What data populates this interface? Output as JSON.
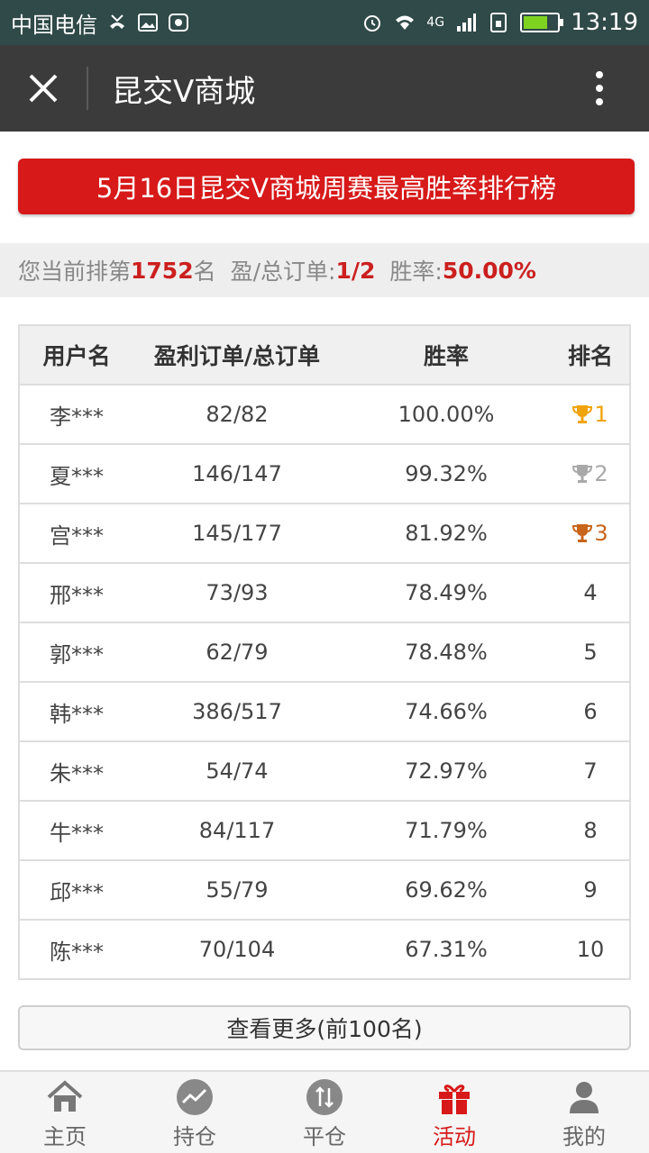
{
  "status_bar": {
    "carrier": "中国电信",
    "network": "4G",
    "time": "13:19",
    "battery_level": 0.7
  },
  "header": {
    "title": "昆交V商城"
  },
  "banner": {
    "text": "5月16日昆交V商城周赛最高胜率排行榜"
  },
  "current_rank": {
    "prefix": "您当前排第",
    "rank": "1752",
    "rank_suffix": "名",
    "orders_label": "盈/总订单:",
    "orders_value": "1/2",
    "rate_label": "胜率:",
    "rate_value": "50.00%"
  },
  "table": {
    "headers": [
      "用户名",
      "盈利订单/总订单",
      "胜率",
      "排名"
    ],
    "rows": [
      {
        "user": "李***",
        "orders": "82/82",
        "rate": "100.00%",
        "rank": "1",
        "trophy": "gold"
      },
      {
        "user": "夏***",
        "orders": "146/147",
        "rate": "99.32%",
        "rank": "2",
        "trophy": "silver"
      },
      {
        "user": "宫***",
        "orders": "145/177",
        "rate": "81.92%",
        "rank": "3",
        "trophy": "bronze"
      },
      {
        "user": "邢***",
        "orders": "73/93",
        "rate": "78.49%",
        "rank": "4",
        "trophy": ""
      },
      {
        "user": "郭***",
        "orders": "62/79",
        "rate": "78.48%",
        "rank": "5",
        "trophy": ""
      },
      {
        "user": "韩***",
        "orders": "386/517",
        "rate": "74.66%",
        "rank": "6",
        "trophy": ""
      },
      {
        "user": "朱***",
        "orders": "54/74",
        "rate": "72.97%",
        "rank": "7",
        "trophy": ""
      },
      {
        "user": "牛***",
        "orders": "84/117",
        "rate": "71.79%",
        "rank": "8",
        "trophy": ""
      },
      {
        "user": "邱***",
        "orders": "55/79",
        "rate": "69.62%",
        "rank": "9",
        "trophy": ""
      },
      {
        "user": "陈***",
        "orders": "70/104",
        "rate": "67.31%",
        "rank": "10",
        "trophy": ""
      }
    ]
  },
  "more_button": {
    "label": "查看更多(前100名)"
  },
  "bottom_nav": {
    "items": [
      {
        "label": "主页",
        "icon": "home-icon"
      },
      {
        "label": "持仓",
        "icon": "chart-icon"
      },
      {
        "label": "平仓",
        "icon": "exchange-icon"
      },
      {
        "label": "活动",
        "icon": "gift-icon"
      },
      {
        "label": "我的",
        "icon": "user-icon"
      }
    ],
    "active_index": 3
  },
  "colors": {
    "accent": "#d71919",
    "title_bar": "#3b3b3b",
    "status_bar": "#2f4a48",
    "gold": "#f0a30a",
    "silver": "#a9a9a9",
    "bronze": "#c8651b"
  }
}
